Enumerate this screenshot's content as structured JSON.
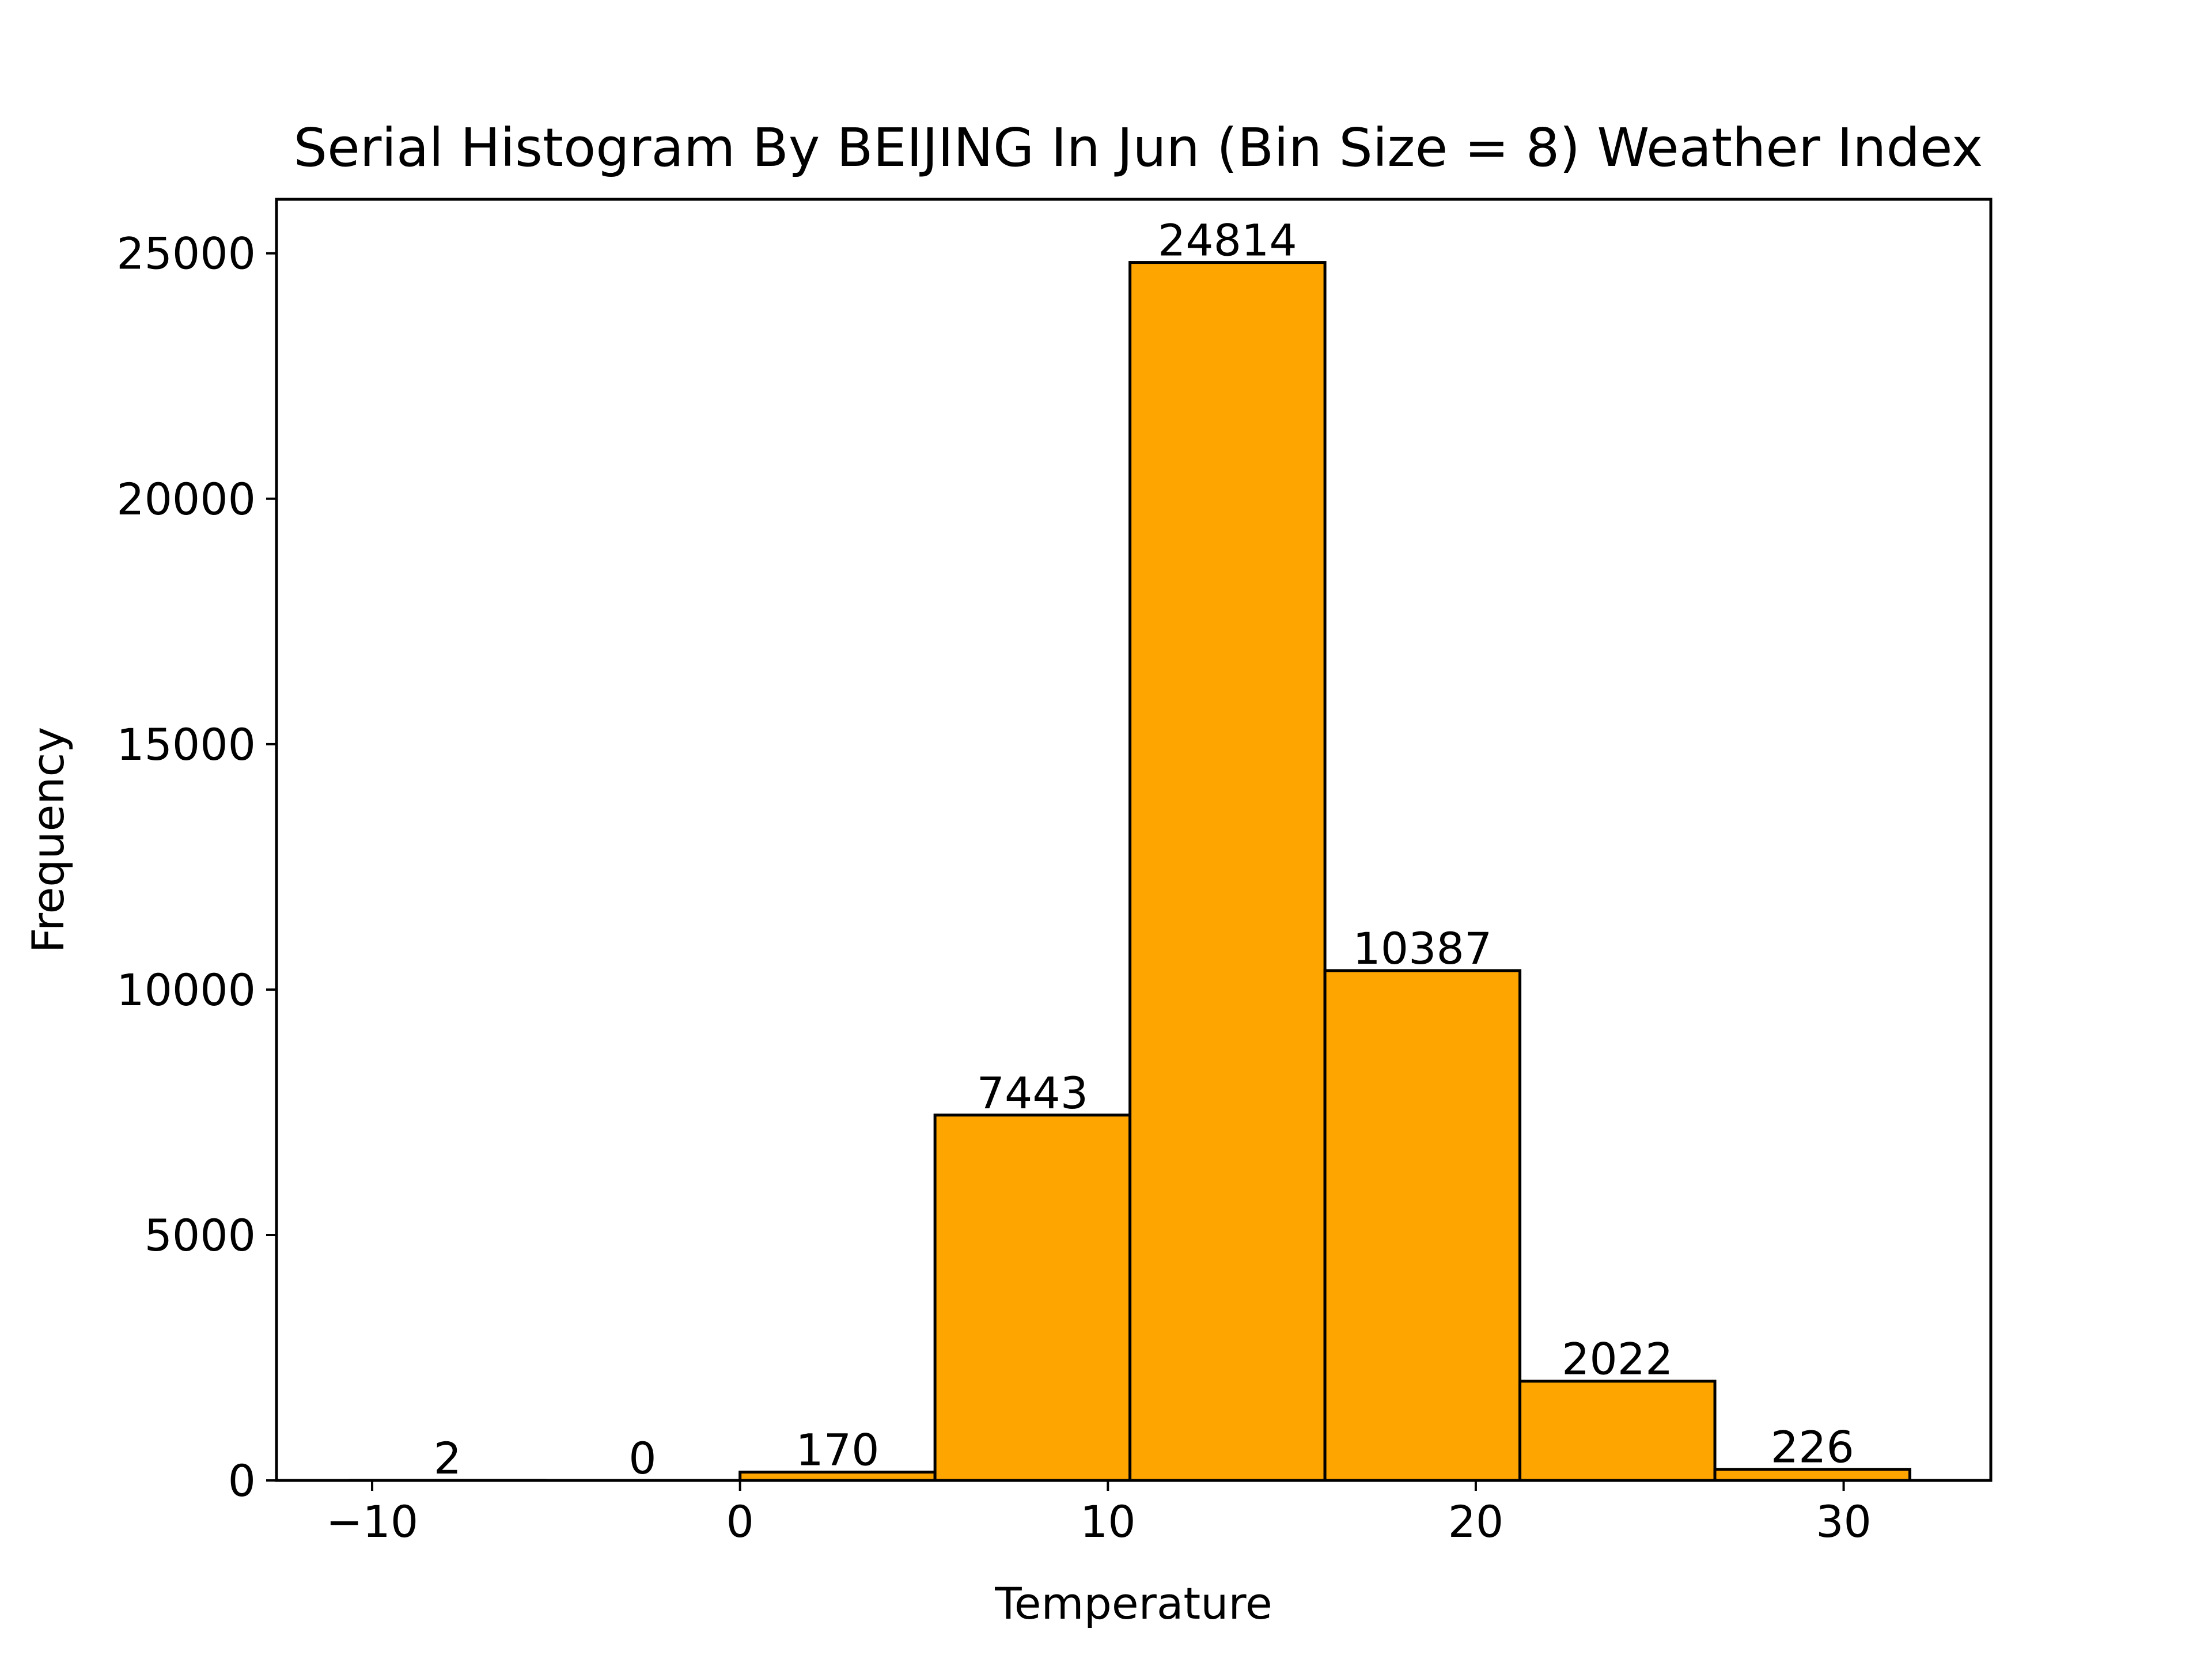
{
  "chart_data": {
    "type": "histogram",
    "title": "Serial Histogram By BEIJING In Jun (Bin Size = 8) Weather Index",
    "xlabel": "Temperature",
    "ylabel": "Frequency",
    "xlim": [
      -12.6,
      34.0
    ],
    "ylim": [
      0,
      26100
    ],
    "xticks": [
      -10,
      0,
      10,
      20,
      30
    ],
    "xtick_labels": [
      "−10",
      "0",
      "10",
      "20",
      "30"
    ],
    "yticks": [
      0,
      5000,
      10000,
      15000,
      20000,
      25000
    ],
    "ytick_labels": [
      "0",
      "5000",
      "10000",
      "15000",
      "20000",
      "25000"
    ],
    "bin_edges": [
      -10.6,
      -5.3,
      0.0,
      5.3,
      10.6,
      15.9,
      21.2,
      26.5,
      31.8
    ],
    "values": [
      2,
      0,
      170,
      7443,
      24814,
      10387,
      2022,
      226
    ],
    "value_labels": [
      "2",
      "0",
      "170",
      "7443",
      "24814",
      "10387",
      "2022",
      "226"
    ],
    "bar_color": "#ffa500",
    "edge_color": "#000000",
    "grid": false,
    "legend": null
  }
}
